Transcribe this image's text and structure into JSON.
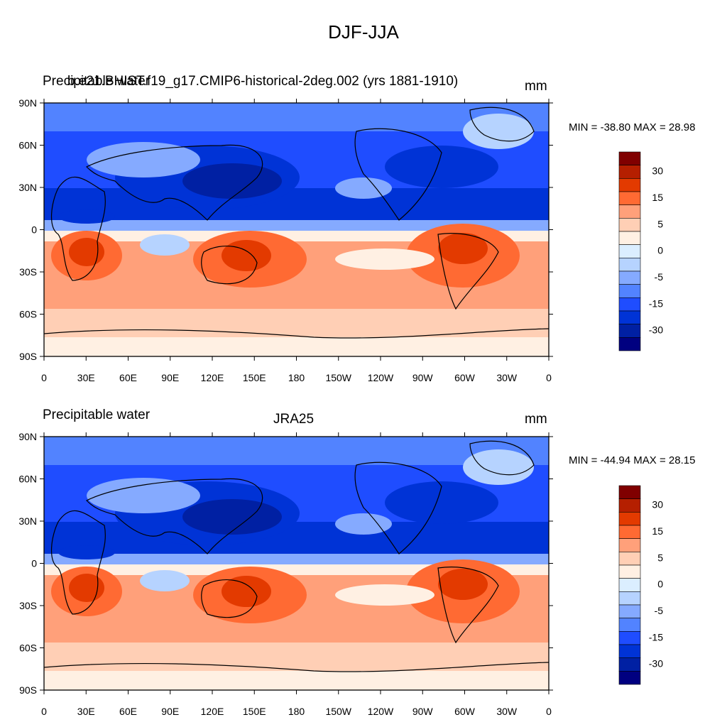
{
  "main_title": "DJF-JJA",
  "panels": [
    {
      "left_title": "Precipitable water",
      "center_title": "b.e21.BHIST.f19_g17.CMIP6-historical-2deg.002 (yrs 1881-1910)",
      "right_title": "mm",
      "minmax": "MIN = -38.80 MAX =  28.98"
    },
    {
      "left_title": "Precipitable water",
      "center_title": "JRA25",
      "right_title": "mm",
      "minmax": "MIN = -44.94 MAX =  28.15"
    }
  ],
  "axes": {
    "lat_labels": [
      "90N",
      "60N",
      "30N",
      "0",
      "30S",
      "60S",
      "90S"
    ],
    "lon_labels": [
      "0",
      "30E",
      "60E",
      "90E",
      "120E",
      "150E",
      "180",
      "150W",
      "120W",
      "90W",
      "60W",
      "30W",
      "0"
    ]
  },
  "colorbar": {
    "labels": [
      "30",
      "15",
      "5",
      "0",
      "-5",
      "-15",
      "-30"
    ],
    "colors": [
      "#800000",
      "#b51f00",
      "#e33a00",
      "#ff6a33",
      "#ffa07a",
      "#ffcfb5",
      "#fff0e3",
      "#dbeeff",
      "#b6d3ff",
      "#85aaff",
      "#5283ff",
      "#1f4dff",
      "#0033d6",
      "#0020a3",
      "#000080"
    ]
  }
}
